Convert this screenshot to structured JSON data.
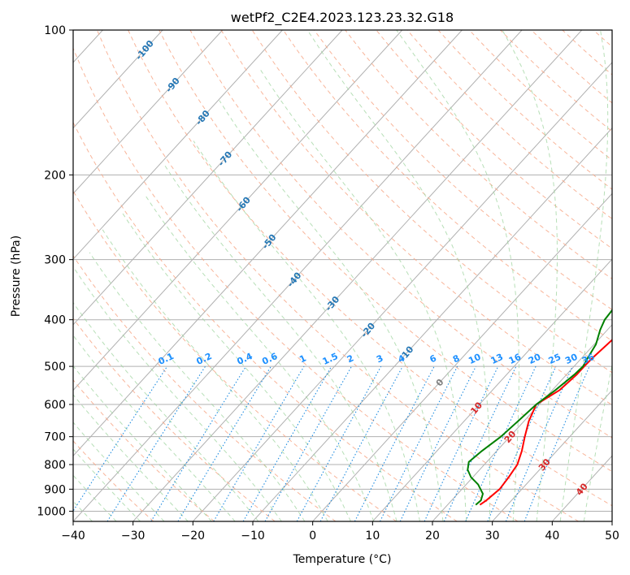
{
  "chart_data": {
    "type": "line",
    "subtype": "skew-t log-p",
    "title": "wetPf2_C2E4.2023.123.23.32.G18",
    "xlabel": "Temperature (°C)",
    "ylabel": "Pressure (hPa)",
    "xlim": [
      -40,
      50
    ],
    "ylim": [
      1050,
      100
    ],
    "x_ticks": [
      -40,
      -30,
      -20,
      -10,
      0,
      10,
      20,
      30,
      40,
      50
    ],
    "y_ticks": [
      100,
      200,
      300,
      400,
      500,
      600,
      700,
      800,
      900,
      1000
    ],
    "grid": true,
    "series": [
      {
        "name": "Temperature",
        "color": "#ff0000",
        "points": [
          [
            25.4,
            970
          ],
          [
            25.8,
            950
          ],
          [
            26.3,
            900
          ],
          [
            26.0,
            850
          ],
          [
            25.5,
            800
          ],
          [
            24.2,
            750
          ],
          [
            22.5,
            700
          ],
          [
            20.8,
            650
          ],
          [
            19.5,
            600
          ],
          [
            21.2,
            560
          ],
          [
            21.7,
            520
          ],
          [
            21.7,
            500
          ],
          [
            21.8,
            480
          ],
          [
            22.2,
            450
          ],
          [
            22.6,
            420
          ],
          [
            21.5,
            400
          ],
          [
            19.8,
            360
          ],
          [
            18.4,
            340
          ],
          [
            17.4,
            320
          ],
          [
            16.2,
            300
          ],
          [
            12.5,
            270
          ],
          [
            9.2,
            240
          ],
          [
            5.8,
            215
          ],
          [
            3.2,
            195
          ],
          [
            0.7,
            180
          ],
          [
            -2.0,
            165
          ],
          [
            -4.0,
            150
          ],
          [
            -5.0,
            140
          ],
          [
            -5.5,
            130
          ],
          [
            -5.8,
            120
          ],
          [
            -5.5,
            112
          ],
          [
            -4.6,
            100
          ]
        ]
      },
      {
        "name": "Dewpoint",
        "color": "#008000",
        "points": [
          [
            24.7,
            970
          ],
          [
            24.9,
            950
          ],
          [
            24.2,
            920
          ],
          [
            22.0,
            880
          ],
          [
            19.7,
            850
          ],
          [
            18.0,
            820
          ],
          [
            17.0,
            790
          ],
          [
            17.5,
            750
          ],
          [
            18.5,
            700
          ],
          [
            19.0,
            650
          ],
          [
            19.5,
            600
          ],
          [
            20.5,
            560
          ],
          [
            21.3,
            520
          ],
          [
            21.5,
            500
          ],
          [
            21.0,
            480
          ],
          [
            20.3,
            450
          ],
          [
            18.8,
            420
          ],
          [
            18.0,
            400
          ],
          [
            17.5,
            360
          ],
          [
            17.4,
            340
          ],
          [
            16.2,
            300
          ],
          [
            13.0,
            280
          ],
          [
            8.5,
            260
          ],
          [
            5.0,
            240
          ],
          [
            5.2,
            220
          ],
          [
            5.8,
            200
          ],
          [
            3.3,
            185
          ],
          [
            0.5,
            170
          ],
          [
            -2.0,
            160
          ],
          [
            -3.8,
            155
          ],
          [
            -4.2,
            145
          ],
          [
            -4.6,
            130
          ],
          [
            -5.3,
            120
          ],
          [
            -5.0,
            112
          ],
          [
            -3.8,
            100
          ]
        ]
      }
    ],
    "dry_adiabat_labels": [
      "-100",
      "-90",
      "-80",
      "-70",
      "-60",
      "-50",
      "-40",
      "-30",
      "-20",
      "-10",
      "0",
      "10",
      "20",
      "30",
      "40"
    ],
    "mixing_ratio_labels": [
      "0.1",
      "0.2",
      "0.4",
      "0.6",
      "1",
      "1.5",
      "2",
      "3",
      "4",
      "6",
      "8",
      "10",
      "13",
      "16",
      "20",
      "25",
      "30",
      "36"
    ],
    "mixing_ratio_values": [
      0.1,
      0.2,
      0.4,
      0.6,
      1,
      1.5,
      2,
      3,
      4,
      6,
      8,
      10,
      13,
      16,
      20,
      25,
      30,
      36
    ]
  }
}
